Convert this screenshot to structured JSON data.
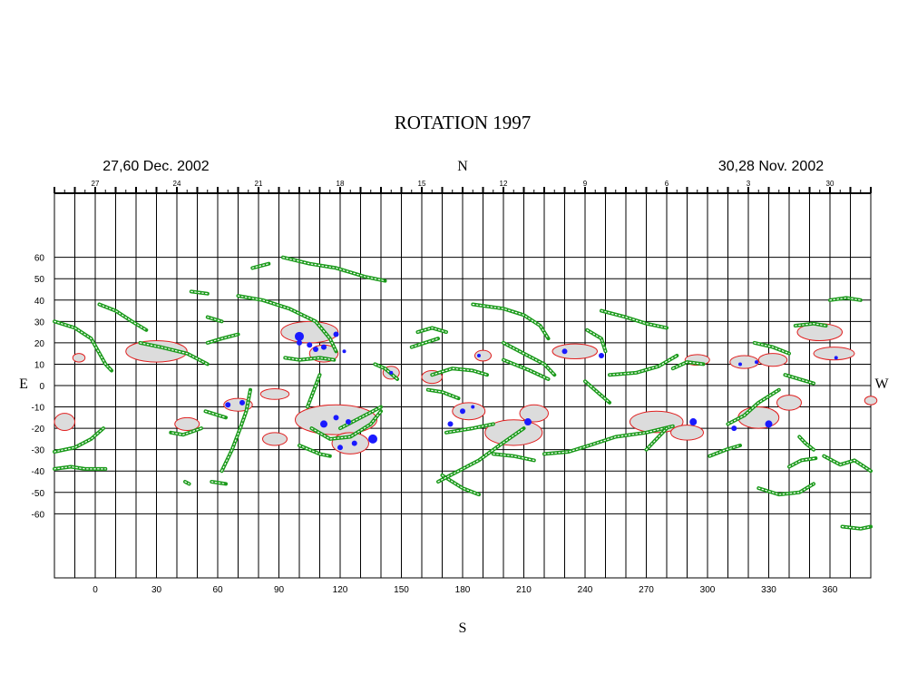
{
  "chart_data": {
    "type": "scatter",
    "title": "ROTATION 1997",
    "date_left": "27,60 Dec. 2002",
    "date_right": "30,28 Nov. 2002",
    "north_label": "N",
    "south_label": "S",
    "east_label": "E",
    "west_label": "W",
    "xlim": [
      -20,
      380
    ],
    "ylim": [
      -90,
      90
    ],
    "grid": true,
    "x_ticks": [
      0,
      30,
      60,
      90,
      120,
      150,
      180,
      210,
      240,
      270,
      300,
      330,
      360
    ],
    "x_tick_labels": [
      "0",
      "30",
      "60",
      "90",
      "120",
      "150",
      "180",
      "210",
      "240",
      "270",
      "300",
      "330",
      "360"
    ],
    "y_ticks": [
      60,
      50,
      40,
      30,
      20,
      10,
      0,
      -10,
      -20,
      -30,
      -40,
      -50,
      -60
    ],
    "y_tick_labels": [
      "60",
      "50",
      "40",
      "30",
      "20",
      "10",
      "0",
      "-10",
      "-20",
      "-30",
      "-40",
      "-50",
      "-60"
    ],
    "day_ticks": [
      27,
      24,
      21,
      18,
      15,
      12,
      9,
      6,
      3,
      30
    ],
    "day_tick_labels": [
      "27",
      "24",
      "21",
      "18",
      "15",
      "12",
      "9",
      "6",
      "3",
      "30"
    ],
    "day_tick_x": [
      0,
      40,
      80,
      120,
      160,
      200,
      240,
      280,
      320,
      360
    ],
    "colors": {
      "filament": "#1a9a1a",
      "plage_fill": "#dcdcdc",
      "plage_edge": "#e02020",
      "spot": "#1a1aff",
      "grid": "#000000"
    },
    "plages": [
      {
        "lon": -15,
        "lat": -17,
        "w": 10,
        "h": 8
      },
      {
        "lon": -8,
        "lat": 13,
        "w": 6,
        "h": 4
      },
      {
        "lon": 30,
        "lat": 16,
        "w": 30,
        "h": 10
      },
      {
        "lon": 45,
        "lat": -18,
        "w": 12,
        "h": 6
      },
      {
        "lon": 70,
        "lat": -9,
        "w": 14,
        "h": 6
      },
      {
        "lon": 88,
        "lat": -4,
        "w": 14,
        "h": 5
      },
      {
        "lon": 88,
        "lat": -25,
        "w": 12,
        "h": 6
      },
      {
        "lon": 105,
        "lat": 25,
        "w": 28,
        "h": 10
      },
      {
        "lon": 112,
        "lat": 15,
        "w": 14,
        "h": 8
      },
      {
        "lon": 118,
        "lat": -16,
        "w": 40,
        "h": 14
      },
      {
        "lon": 125,
        "lat": -27,
        "w": 18,
        "h": 10
      },
      {
        "lon": 145,
        "lat": 6,
        "w": 8,
        "h": 6
      },
      {
        "lon": 165,
        "lat": 4,
        "w": 10,
        "h": 6
      },
      {
        "lon": 183,
        "lat": -12,
        "w": 16,
        "h": 8
      },
      {
        "lon": 190,
        "lat": 14,
        "w": 8,
        "h": 5
      },
      {
        "lon": 205,
        "lat": -22,
        "w": 28,
        "h": 12
      },
      {
        "lon": 215,
        "lat": -13,
        "w": 14,
        "h": 8
      },
      {
        "lon": 235,
        "lat": 16,
        "w": 22,
        "h": 7
      },
      {
        "lon": 275,
        "lat": -17,
        "w": 26,
        "h": 10
      },
      {
        "lon": 290,
        "lat": -22,
        "w": 16,
        "h": 7
      },
      {
        "lon": 295,
        "lat": 12,
        "w": 12,
        "h": 5
      },
      {
        "lon": 318,
        "lat": 11,
        "w": 14,
        "h": 6
      },
      {
        "lon": 325,
        "lat": -15,
        "w": 20,
        "h": 10
      },
      {
        "lon": 332,
        "lat": 12,
        "w": 14,
        "h": 6
      },
      {
        "lon": 340,
        "lat": -8,
        "w": 12,
        "h": 7
      },
      {
        "lon": 355,
        "lat": 25,
        "w": 22,
        "h": 8
      },
      {
        "lon": 362,
        "lat": 15,
        "w": 20,
        "h": 6
      },
      {
        "lon": 380,
        "lat": -7,
        "w": 6,
        "h": 4
      }
    ],
    "spots": [
      {
        "lon": 65,
        "lat": -9,
        "r": 3
      },
      {
        "lon": 72,
        "lat": -8,
        "r": 3
      },
      {
        "lon": 100,
        "lat": 23,
        "r": 5
      },
      {
        "lon": 100,
        "lat": 20,
        "r": 3
      },
      {
        "lon": 105,
        "lat": 19,
        "r": 3
      },
      {
        "lon": 108,
        "lat": 17,
        "r": 3
      },
      {
        "lon": 112,
        "lat": 18,
        "r": 3
      },
      {
        "lon": 118,
        "lat": 24,
        "r": 3
      },
      {
        "lon": 122,
        "lat": 16,
        "r": 2
      },
      {
        "lon": 112,
        "lat": -18,
        "r": 4
      },
      {
        "lon": 118,
        "lat": -15,
        "r": 3
      },
      {
        "lon": 124,
        "lat": -17,
        "r": 3
      },
      {
        "lon": 120,
        "lat": -29,
        "r": 3
      },
      {
        "lon": 127,
        "lat": -27,
        "r": 3
      },
      {
        "lon": 136,
        "lat": -25,
        "r": 5
      },
      {
        "lon": 145,
        "lat": 6,
        "r": 2
      },
      {
        "lon": 174,
        "lat": -18,
        "r": 3
      },
      {
        "lon": 180,
        "lat": -12,
        "r": 3
      },
      {
        "lon": 185,
        "lat": -10,
        "r": 2
      },
      {
        "lon": 188,
        "lat": 14,
        "r": 2
      },
      {
        "lon": 212,
        "lat": -17,
        "r": 4
      },
      {
        "lon": 230,
        "lat": 16,
        "r": 3
      },
      {
        "lon": 248,
        "lat": 14,
        "r": 3
      },
      {
        "lon": 293,
        "lat": -17,
        "r": 4
      },
      {
        "lon": 313,
        "lat": -20,
        "r": 3
      },
      {
        "lon": 316,
        "lat": 10,
        "r": 2
      },
      {
        "lon": 324,
        "lat": 11,
        "r": 2
      },
      {
        "lon": 330,
        "lat": -18,
        "r": 4
      },
      {
        "lon": 363,
        "lat": 13,
        "r": 2
      }
    ],
    "filaments": [
      {
        "points": [
          [
            -20,
            30
          ],
          [
            -10,
            27
          ],
          [
            -2,
            22
          ],
          [
            5,
            10
          ],
          [
            8,
            7
          ]
        ]
      },
      {
        "points": [
          [
            2,
            38
          ],
          [
            10,
            35
          ],
          [
            18,
            30
          ],
          [
            25,
            26
          ]
        ]
      },
      {
        "points": [
          [
            22,
            20
          ],
          [
            32,
            18
          ],
          [
            45,
            15
          ],
          [
            55,
            10
          ]
        ]
      },
      {
        "points": [
          [
            55,
            20
          ],
          [
            62,
            22
          ],
          [
            70,
            24
          ]
        ]
      },
      {
        "points": [
          [
            47,
            44
          ],
          [
            55,
            43
          ]
        ]
      },
      {
        "points": [
          [
            77,
            55
          ],
          [
            85,
            57
          ]
        ]
      },
      {
        "points": [
          [
            70,
            42
          ],
          [
            82,
            40
          ],
          [
            95,
            36
          ],
          [
            108,
            30
          ],
          [
            115,
            22
          ],
          [
            118,
            16
          ]
        ]
      },
      {
        "points": [
          [
            93,
            13
          ],
          [
            100,
            12
          ],
          [
            110,
            13
          ],
          [
            117,
            12
          ]
        ]
      },
      {
        "points": [
          [
            92,
            60
          ],
          [
            105,
            57
          ],
          [
            118,
            55
          ],
          [
            132,
            51
          ],
          [
            142,
            49
          ]
        ]
      },
      {
        "points": [
          [
            55,
            32
          ],
          [
            62,
            30
          ]
        ]
      },
      {
        "points": [
          [
            62,
            -40
          ],
          [
            67,
            -30
          ],
          [
            71,
            -20
          ],
          [
            74,
            -12
          ],
          [
            76,
            -2
          ]
        ]
      },
      {
        "points": [
          [
            54,
            -12
          ],
          [
            64,
            -15
          ]
        ]
      },
      {
        "points": [
          [
            52,
            -20
          ],
          [
            43,
            -23
          ],
          [
            37,
            -22
          ]
        ]
      },
      {
        "points": [
          [
            44,
            -45
          ],
          [
            46,
            -46
          ]
        ]
      },
      {
        "points": [
          [
            57,
            -45
          ],
          [
            64,
            -46
          ]
        ]
      },
      {
        "points": [
          [
            -20,
            -31
          ],
          [
            -10,
            -29
          ],
          [
            -2,
            -25
          ],
          [
            4,
            -20
          ]
        ]
      },
      {
        "points": [
          [
            -20,
            -39
          ],
          [
            -12,
            -38
          ],
          [
            -5,
            -39
          ],
          [
            5,
            -39
          ]
        ]
      },
      {
        "points": [
          [
            104,
            -10
          ],
          [
            106,
            -5
          ],
          [
            108,
            0
          ],
          [
            110,
            5
          ]
        ]
      },
      {
        "points": [
          [
            106,
            -20
          ],
          [
            115,
            -25
          ],
          [
            125,
            -24
          ],
          [
            135,
            -18
          ],
          [
            140,
            -12
          ]
        ]
      },
      {
        "points": [
          [
            120,
            -20
          ],
          [
            132,
            -14
          ],
          [
            140,
            -10
          ]
        ]
      },
      {
        "points": [
          [
            100,
            -28
          ],
          [
            110,
            -32
          ],
          [
            115,
            -33
          ]
        ]
      },
      {
        "points": [
          [
            137,
            10
          ],
          [
            142,
            8
          ],
          [
            148,
            3
          ]
        ]
      },
      {
        "points": [
          [
            158,
            25
          ],
          [
            165,
            27
          ],
          [
            172,
            25
          ]
        ]
      },
      {
        "points": [
          [
            155,
            18
          ],
          [
            168,
            22
          ]
        ]
      },
      {
        "points": [
          [
            170,
            -42
          ],
          [
            180,
            -48
          ],
          [
            188,
            -51
          ]
        ]
      },
      {
        "points": [
          [
            168,
            -45
          ],
          [
            178,
            -40
          ],
          [
            188,
            -35
          ],
          [
            198,
            -28
          ],
          [
            210,
            -20
          ]
        ]
      },
      {
        "points": [
          [
            172,
            -22
          ],
          [
            185,
            -20
          ],
          [
            195,
            -18
          ]
        ]
      },
      {
        "points": [
          [
            195,
            -32
          ],
          [
            205,
            -33
          ],
          [
            215,
            -35
          ]
        ]
      },
      {
        "points": [
          [
            185,
            38
          ],
          [
            200,
            36
          ],
          [
            210,
            33
          ],
          [
            218,
            28
          ],
          [
            222,
            22
          ]
        ]
      },
      {
        "points": [
          [
            200,
            20
          ],
          [
            210,
            15
          ],
          [
            220,
            10
          ],
          [
            225,
            5
          ]
        ]
      },
      {
        "points": [
          [
            200,
            12
          ],
          [
            213,
            7
          ],
          [
            222,
            3
          ]
        ]
      },
      {
        "points": [
          [
            165,
            5
          ],
          [
            175,
            8
          ],
          [
            185,
            7
          ],
          [
            192,
            5
          ]
        ]
      },
      {
        "points": [
          [
            163,
            -2
          ],
          [
            170,
            -3
          ],
          [
            178,
            -6
          ]
        ]
      },
      {
        "points": [
          [
            220,
            -32
          ],
          [
            232,
            -31
          ],
          [
            242,
            -28
          ],
          [
            255,
            -24
          ],
          [
            270,
            -22
          ],
          [
            283,
            -19
          ]
        ]
      },
      {
        "points": [
          [
            248,
            35
          ],
          [
            260,
            32
          ],
          [
            270,
            29
          ],
          [
            280,
            27
          ]
        ]
      },
      {
        "points": [
          [
            241,
            26
          ],
          [
            248,
            22
          ],
          [
            250,
            16
          ]
        ]
      },
      {
        "points": [
          [
            252,
            5
          ],
          [
            265,
            6
          ],
          [
            276,
            9
          ],
          [
            285,
            14
          ]
        ]
      },
      {
        "points": [
          [
            270,
            -30
          ],
          [
            275,
            -25
          ],
          [
            280,
            -20
          ]
        ]
      },
      {
        "points": [
          [
            283,
            8
          ],
          [
            290,
            11
          ],
          [
            298,
            10
          ]
        ]
      },
      {
        "points": [
          [
            240,
            2
          ],
          [
            246,
            -3
          ],
          [
            252,
            -8
          ]
        ]
      },
      {
        "points": [
          [
            301,
            -33
          ],
          [
            309,
            -30
          ],
          [
            316,
            -28
          ]
        ]
      },
      {
        "points": [
          [
            310,
            -18
          ],
          [
            318,
            -14
          ],
          [
            325,
            -8
          ],
          [
            335,
            -2
          ]
        ]
      },
      {
        "points": [
          [
            323,
            20
          ],
          [
            332,
            18
          ],
          [
            340,
            15
          ]
        ]
      },
      {
        "points": [
          [
            338,
            5
          ],
          [
            345,
            3
          ],
          [
            352,
            1
          ]
        ]
      },
      {
        "points": [
          [
            340,
            -38
          ],
          [
            346,
            -35
          ],
          [
            353,
            -34
          ]
        ]
      },
      {
        "points": [
          [
            345,
            -24
          ],
          [
            348,
            -27
          ],
          [
            352,
            -30
          ]
        ]
      },
      {
        "points": [
          [
            343,
            28
          ],
          [
            352,
            29
          ],
          [
            358,
            28
          ]
        ]
      },
      {
        "points": [
          [
            360,
            40
          ],
          [
            368,
            41
          ],
          [
            375,
            40
          ]
        ]
      },
      {
        "points": [
          [
            357,
            -33
          ],
          [
            365,
            -37
          ],
          [
            372,
            -35
          ],
          [
            380,
            -40
          ]
        ]
      },
      {
        "points": [
          [
            325,
            -48
          ],
          [
            335,
            -51
          ],
          [
            345,
            -50
          ],
          [
            352,
            -46
          ]
        ]
      },
      {
        "points": [
          [
            366,
            -66
          ],
          [
            375,
            -67
          ],
          [
            380,
            -66
          ]
        ]
      }
    ]
  }
}
